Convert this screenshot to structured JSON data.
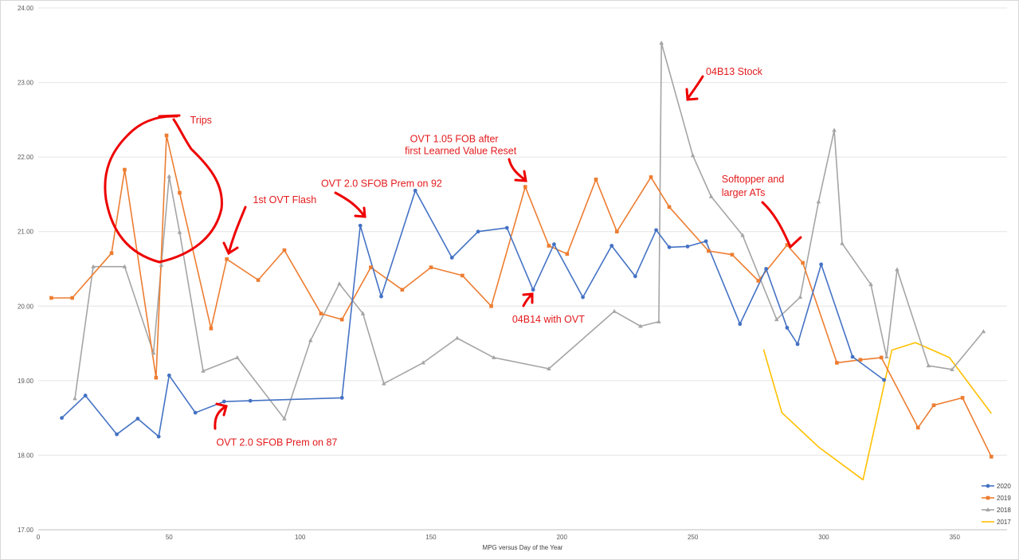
{
  "chart_data": {
    "type": "line",
    "xlabel": "MPG versus Day of the Year",
    "ylabel": "",
    "xlim": [
      0,
      370
    ],
    "ylim": [
      17.0,
      24.0
    ],
    "x_ticks": [
      0,
      50,
      100,
      150,
      200,
      250,
      300,
      350
    ],
    "y_ticks": [
      "17.00",
      "18.00",
      "19.00",
      "20.00",
      "21.00",
      "22.00",
      "23.00",
      "24.00"
    ],
    "grid": "horizontal",
    "legend": "bottom-right",
    "series": [
      {
        "name": "2020",
        "color": "#4472c4",
        "marker": "circle",
        "points": [
          [
            9,
            18.5
          ],
          [
            18,
            18.8
          ],
          [
            30,
            18.28
          ],
          [
            38,
            18.49
          ],
          [
            46,
            18.25
          ],
          [
            50,
            19.07
          ],
          [
            60,
            18.57
          ],
          [
            71,
            18.72
          ],
          [
            81,
            18.73
          ],
          [
            116,
            18.77
          ],
          [
            123,
            21.08
          ],
          [
            131,
            20.13
          ],
          [
            144,
            21.55
          ],
          [
            158,
            20.65
          ],
          [
            168,
            21.0
          ],
          [
            179,
            21.05
          ],
          [
            189,
            20.22
          ],
          [
            197,
            20.83
          ],
          [
            208,
            20.12
          ],
          [
            219,
            20.81
          ],
          [
            228,
            20.4
          ],
          [
            236,
            21.02
          ],
          [
            241,
            20.79
          ],
          [
            248,
            20.8
          ],
          [
            255,
            20.87
          ],
          [
            268,
            19.76
          ],
          [
            278,
            20.5
          ],
          [
            286,
            19.71
          ],
          [
            290,
            19.49
          ],
          [
            299,
            20.56
          ],
          [
            311,
            19.32
          ],
          [
            323,
            19.01
          ]
        ]
      },
      {
        "name": "2019",
        "color": "#ed7d31",
        "marker": "square",
        "points": [
          [
            5,
            20.11
          ],
          [
            13,
            20.11
          ],
          [
            28,
            20.71
          ],
          [
            33,
            21.83
          ],
          [
            45,
            19.04
          ],
          [
            49,
            22.29
          ],
          [
            54,
            21.52
          ],
          [
            66,
            19.7
          ],
          [
            72,
            20.63
          ],
          [
            84,
            20.35
          ],
          [
            94,
            20.75
          ],
          [
            108,
            19.9
          ],
          [
            116,
            19.82
          ],
          [
            127,
            20.52
          ],
          [
            139,
            20.22
          ],
          [
            150,
            20.52
          ],
          [
            162,
            20.41
          ],
          [
            173,
            20.0
          ],
          [
            186,
            21.6
          ],
          [
            195,
            20.81
          ],
          [
            202,
            20.7
          ],
          [
            213,
            21.7
          ],
          [
            221,
            21.0
          ],
          [
            234,
            21.73
          ],
          [
            241,
            21.33
          ],
          [
            256,
            20.74
          ],
          [
            265,
            20.69
          ],
          [
            275,
            20.34
          ],
          [
            286,
            20.82
          ],
          [
            292,
            20.58
          ],
          [
            305,
            19.24
          ],
          [
            314,
            19.28
          ],
          [
            322,
            19.31
          ],
          [
            336,
            18.37
          ],
          [
            342,
            18.67
          ],
          [
            353,
            18.77
          ],
          [
            364,
            17.98
          ]
        ]
      },
      {
        "name": "2018",
        "color": "#a5a5a5",
        "marker": "triangle",
        "points": [
          [
            14,
            18.76
          ],
          [
            21,
            20.53
          ],
          [
            33,
            20.53
          ],
          [
            44,
            19.37
          ],
          [
            47,
            20.55
          ],
          [
            50,
            21.74
          ],
          [
            54,
            20.99
          ],
          [
            63,
            19.13
          ],
          [
            76,
            19.31
          ],
          [
            94,
            18.49
          ],
          [
            104,
            19.54
          ],
          [
            115,
            20.3
          ],
          [
            124,
            19.9
          ],
          [
            132,
            18.96
          ],
          [
            147,
            19.24
          ],
          [
            160,
            19.57
          ],
          [
            174,
            19.31
          ],
          [
            195,
            19.16
          ],
          [
            220,
            19.93
          ],
          [
            230,
            19.73
          ],
          [
            237,
            19.79
          ],
          [
            238,
            23.53
          ],
          [
            250,
            22.02
          ],
          [
            257,
            21.47
          ],
          [
            269,
            20.95
          ],
          [
            282,
            19.82
          ],
          [
            291,
            20.12
          ],
          [
            298,
            21.4
          ],
          [
            304,
            22.36
          ],
          [
            307,
            20.84
          ],
          [
            318,
            20.29
          ],
          [
            324,
            19.32
          ],
          [
            328,
            20.49
          ],
          [
            340,
            19.2
          ],
          [
            349,
            19.15
          ],
          [
            361,
            19.66
          ]
        ]
      },
      {
        "name": "2017",
        "color": "#ffc000",
        "marker": "none",
        "points": [
          [
            277,
            19.42
          ],
          [
            284,
            18.57
          ],
          [
            298,
            18.11
          ],
          [
            315,
            17.67
          ],
          [
            326,
            19.41
          ],
          [
            335,
            19.51
          ],
          [
            348,
            19.31
          ],
          [
            364,
            18.56
          ]
        ]
      }
    ],
    "annotations": [
      {
        "text": "Trips",
        "x": 58,
        "y": 22.45
      },
      {
        "text": "1st OVT Flash",
        "x": 82,
        "y": 21.38
      },
      {
        "text": "OVT 2.0 SFOB Prem on 92",
        "x": 108,
        "y": 21.6
      },
      {
        "text": "OVT 1.05 FOB after",
        "x": 142,
        "y": 22.2
      },
      {
        "text": "first Learned Value Reset",
        "x": 140,
        "y": 22.04
      },
      {
        "text": "04B13 Stock",
        "x": 255,
        "y": 23.1
      },
      {
        "text": "Softopper and",
        "x": 261,
        "y": 21.66
      },
      {
        "text": "larger ATs",
        "x": 261,
        "y": 21.48
      },
      {
        "text": "04B14 with OVT",
        "x": 181,
        "y": 19.78
      },
      {
        "text": "OVT 2.0 SFOB Prem on 87",
        "x": 68,
        "y": 18.13
      }
    ]
  }
}
